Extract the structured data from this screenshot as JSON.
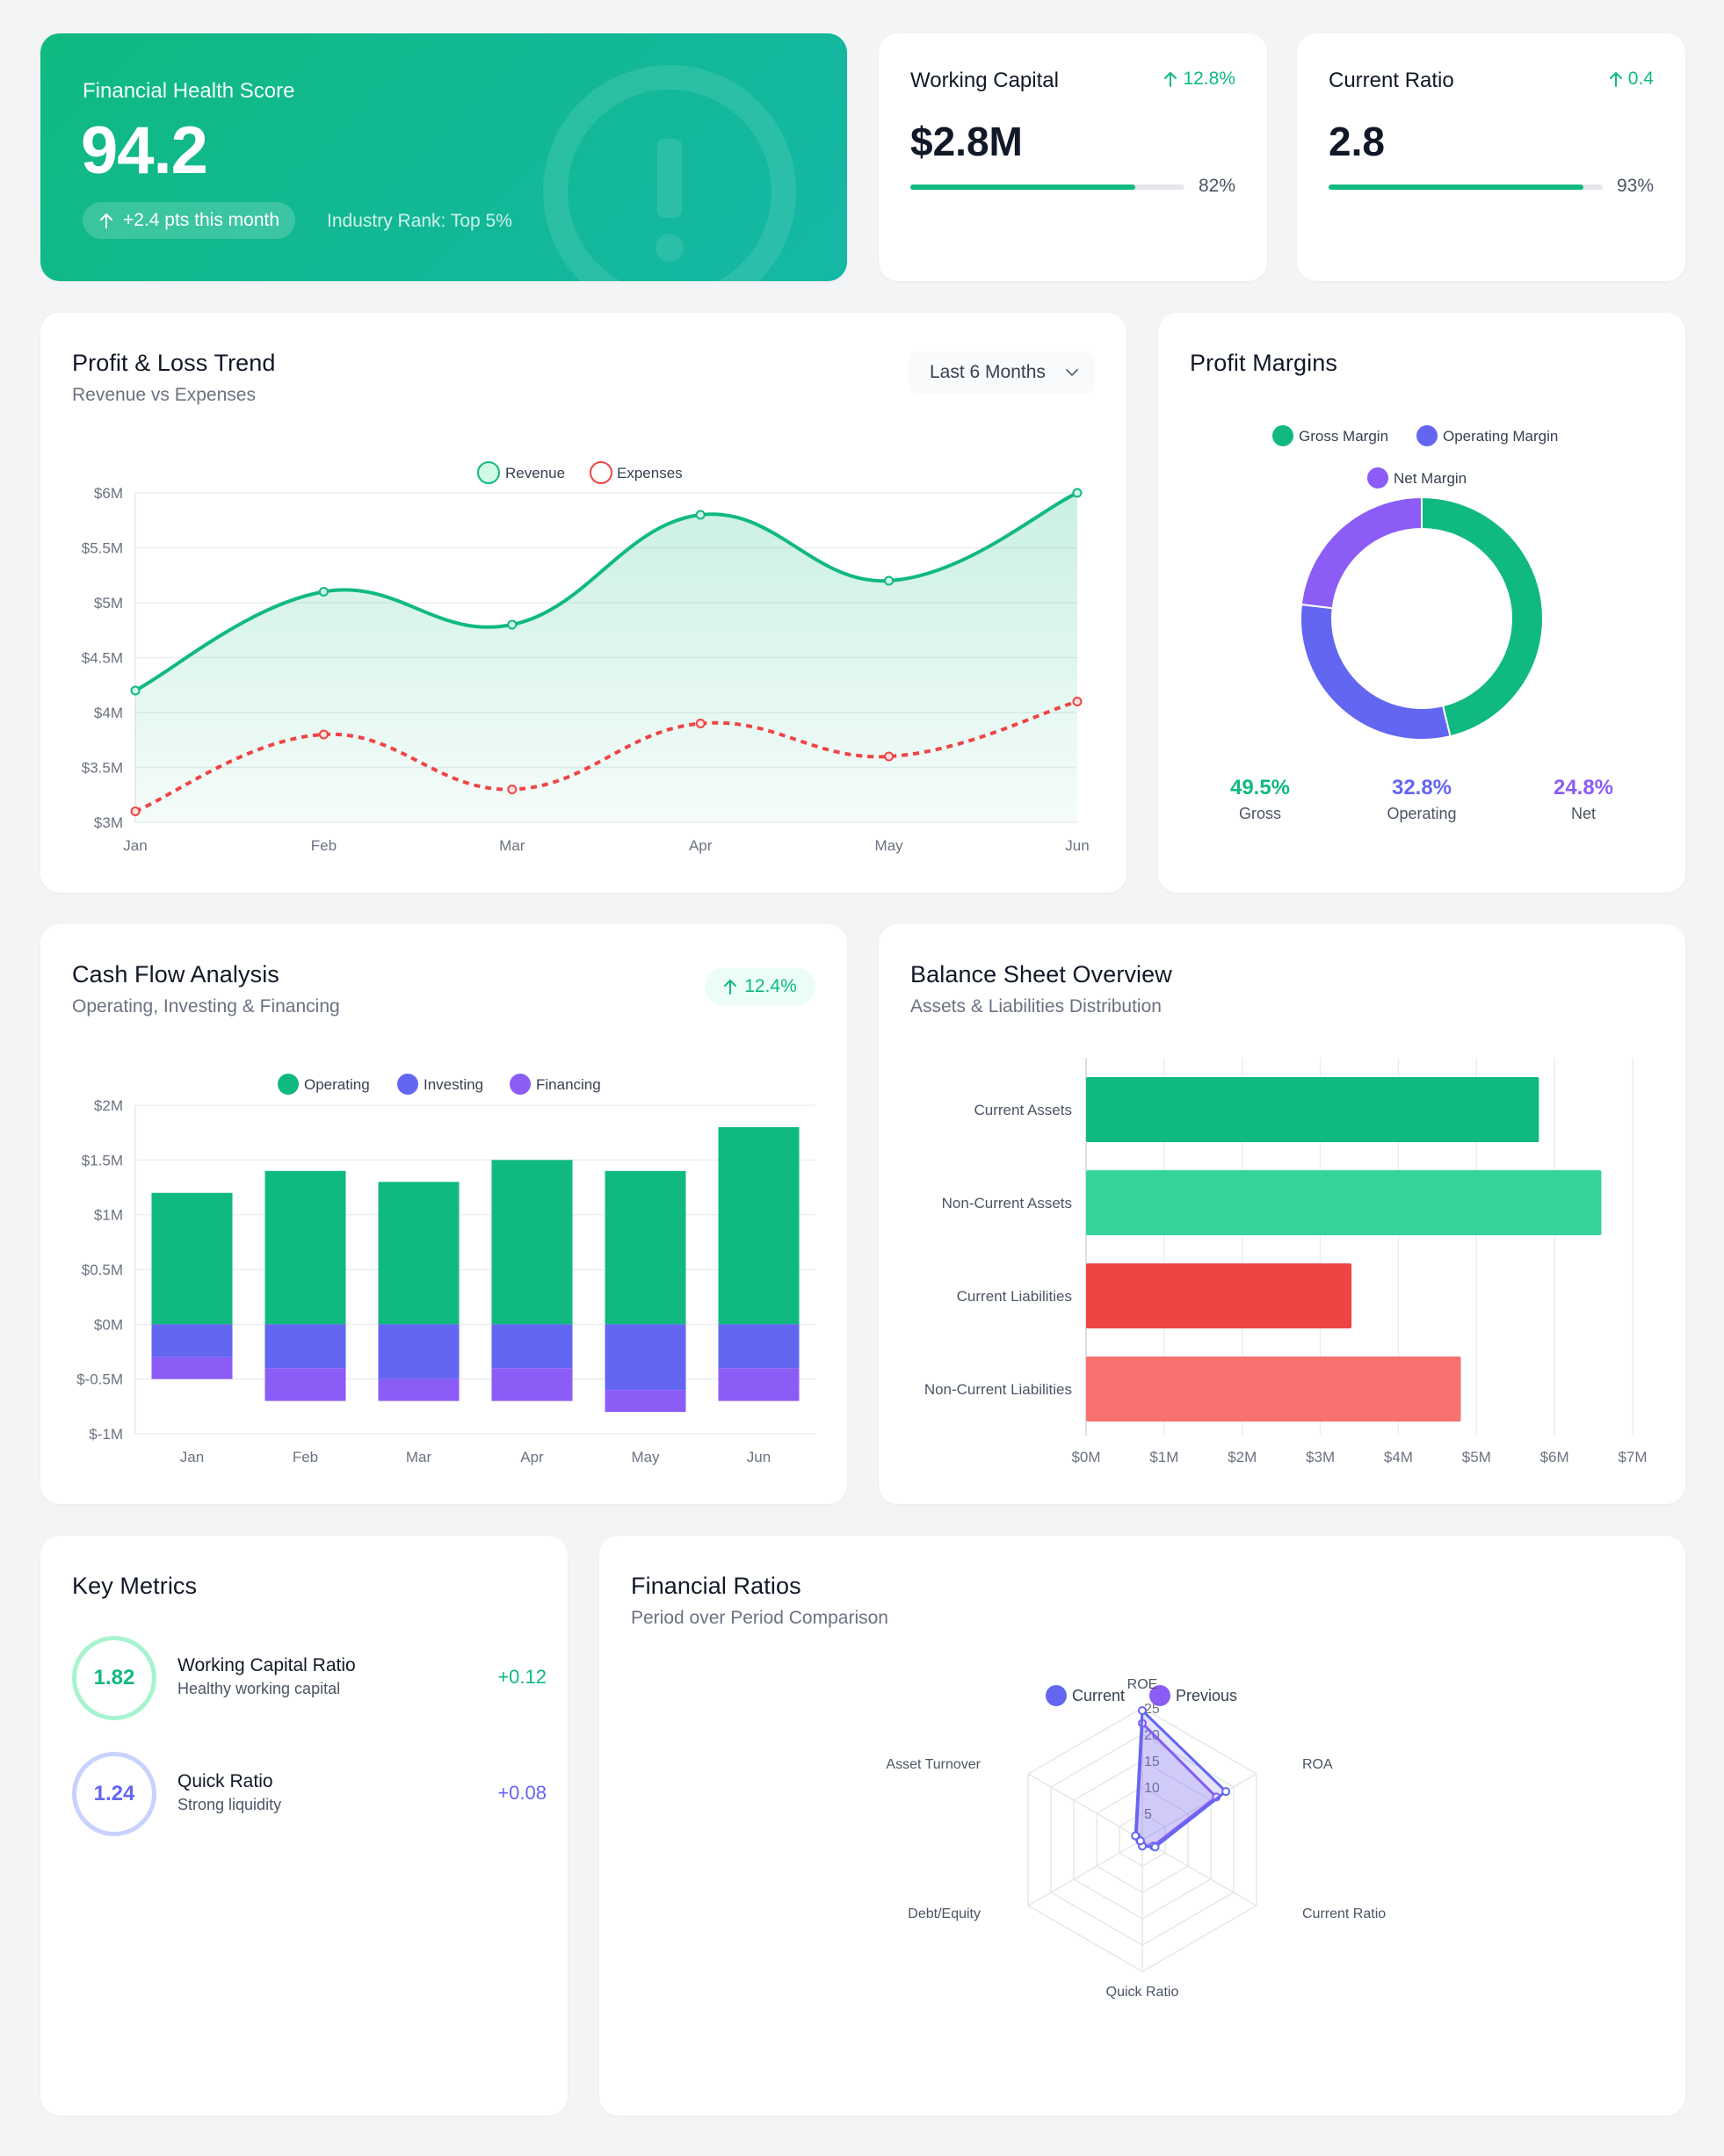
{
  "hero": {
    "label": "Financial Health Score",
    "score": "94.2",
    "change": "+2.4 pts this month",
    "rank": "Industry Rank: Top 5%"
  },
  "kpis": [
    {
      "name": "Working Capital",
      "change": "12.8%",
      "value": "$2.8M",
      "progress": 0.82,
      "progress_label": "82%"
    },
    {
      "name": "Current Ratio",
      "change": "0.4",
      "value": "2.8",
      "progress": 0.93,
      "progress_label": "93%"
    }
  ],
  "pl": {
    "title": "Profit & Loss Trend",
    "subtitle": "Revenue vs Expenses",
    "range": "Last 6 Months",
    "legend": [
      "Revenue",
      "Expenses"
    ]
  },
  "margins": {
    "title": "Profit Margins",
    "legend": [
      "Gross Margin",
      "Operating Margin",
      "Net Margin"
    ],
    "stats": [
      {
        "value": "49.5%",
        "label": "Gross",
        "color": "#10b981"
      },
      {
        "value": "32.8%",
        "label": "Operating",
        "color": "#6366f1"
      },
      {
        "value": "24.8%",
        "label": "Net",
        "color": "#8b5cf6"
      }
    ]
  },
  "cashflow": {
    "title": "Cash Flow Analysis",
    "subtitle": "Operating, Investing & Financing",
    "badge": "12.4%",
    "legend": [
      "Operating",
      "Investing",
      "Financing"
    ]
  },
  "balance": {
    "title": "Balance Sheet Overview",
    "subtitle": "Assets & Liabilities Distribution"
  },
  "metrics": {
    "title": "Key Metrics",
    "items": [
      {
        "value": "1.82",
        "name": "Working Capital Ratio",
        "desc": "Healthy working capital",
        "delta": "+0.12"
      },
      {
        "value": "1.24",
        "name": "Quick Ratio",
        "desc": "Strong liquidity",
        "delta": "+0.08"
      }
    ]
  },
  "ratios": {
    "title": "Financial Ratios",
    "subtitle": "Period over Period Comparison",
    "legend": [
      "Current",
      "Previous"
    ]
  },
  "colors": {
    "green": "#10b981",
    "teal": "#14b8a6",
    "indigo": "#6366f1",
    "purple": "#8b5cf6",
    "red": "#ef4444",
    "redlight": "#f87171",
    "greenlight": "#34d399"
  },
  "chart_data": [
    {
      "type": "line",
      "x": [
        "Jan",
        "Feb",
        "Mar",
        "Apr",
        "May",
        "Jun"
      ],
      "series": [
        {
          "name": "Revenue",
          "values": [
            4.2,
            5.1,
            4.8,
            5.8,
            5.2,
            6.0
          ]
        },
        {
          "name": "Expenses",
          "values": [
            3.1,
            3.8,
            3.3,
            3.9,
            3.6,
            4.1
          ]
        }
      ],
      "ylim": [
        3,
        6
      ],
      "yticks": [
        "$3M",
        "$3.5M",
        "$4M",
        "$4.5M",
        "$5M",
        "$5.5M",
        "$6M"
      ],
      "legend": "top-center"
    },
    {
      "type": "pie",
      "categories": [
        "Gross Margin",
        "Operating Margin",
        "Net Margin"
      ],
      "values": [
        49.5,
        32.8,
        24.8
      ],
      "legend": "top-center"
    },
    {
      "type": "bar",
      "categories": [
        "Jan",
        "Feb",
        "Mar",
        "Apr",
        "May",
        "Jun"
      ],
      "series": [
        {
          "name": "Operating",
          "values": [
            1.2,
            1.4,
            1.3,
            1.5,
            1.4,
            1.8
          ]
        },
        {
          "name": "Investing",
          "values": [
            -0.3,
            -0.4,
            -0.5,
            -0.4,
            -0.6,
            -0.4
          ]
        },
        {
          "name": "Financing",
          "values": [
            -0.2,
            -0.3,
            -0.2,
            -0.3,
            -0.2,
            -0.3
          ]
        }
      ],
      "ylim": [
        -1,
        2
      ],
      "yticks": [
        "$-1M",
        "$-0.5M",
        "$0M",
        "$0.5M",
        "$1M",
        "$1.5M",
        "$2M"
      ],
      "stacked": true,
      "legend": "top-center"
    },
    {
      "type": "bar",
      "orientation": "horizontal",
      "categories": [
        "Current Assets",
        "Non-Current Assets",
        "Current Liabilities",
        "Non-Current Liabilities"
      ],
      "values": [
        5.8,
        6.6,
        3.4,
        4.8
      ],
      "xlim": [
        0,
        7
      ],
      "xticks": [
        "$0M",
        "$1M",
        "$2M",
        "$3M",
        "$4M",
        "$5M",
        "$6M",
        "$7M"
      ]
    },
    {
      "type": "radar",
      "axes": [
        "ROE",
        "ROA",
        "Current Ratio",
        "Quick Ratio",
        "Debt/Equity",
        "Asset Turnover"
      ],
      "series": [
        {
          "name": "Current",
          "values": [
            24.5,
            18.3,
            2.8,
            1.2,
            0.4,
            1.5
          ]
        },
        {
          "name": "Previous",
          "values": [
            22.1,
            16.2,
            2.4,
            1.1,
            0.5,
            1.3
          ]
        }
      ],
      "rticks": [
        "5",
        "10",
        "15",
        "20",
        "25"
      ],
      "rlim": [
        0,
        25
      ],
      "legend": "top-center"
    }
  ]
}
